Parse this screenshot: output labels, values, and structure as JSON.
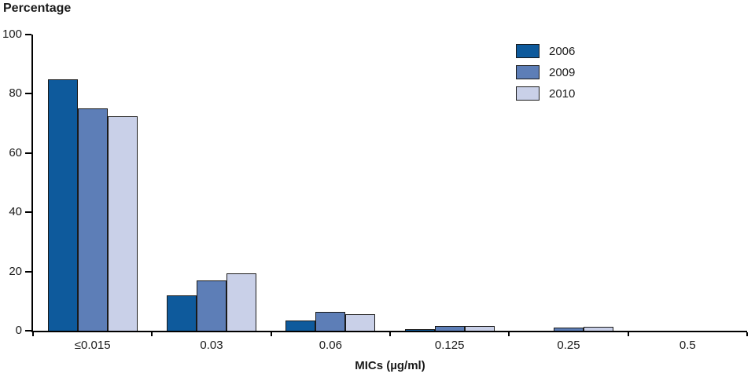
{
  "chart": {
    "title": "Percentage",
    "xlabel": "MICs (µg/ml)"
  },
  "chart_data": {
    "type": "bar",
    "title": "Percentage",
    "xlabel": "MICs (µg/ml)",
    "ylabel": "Percentage",
    "categories": [
      "≤0.015",
      "0.03",
      "0.06",
      "0.125",
      "0.25",
      "0.5"
    ],
    "series": [
      {
        "name": "2006",
        "color": "#0e5a9c",
        "values": [
          85,
          12,
          3.5,
          0.5,
          0,
          0
        ]
      },
      {
        "name": "2009",
        "color": "#5d7eb7",
        "values": [
          75,
          17,
          6.5,
          1.5,
          1,
          0
        ]
      },
      {
        "name": "2010",
        "color": "#c9d0e8",
        "values": [
          72.5,
          19.5,
          5.5,
          1.5,
          1.2,
          0
        ]
      }
    ],
    "ylim": [
      0,
      100
    ],
    "yticks": [
      0,
      20,
      40,
      60,
      80,
      100
    ],
    "grid": false,
    "legend_position": "top-right",
    "bar_border_color": "#1a1a1a",
    "axis_color": "#000000"
  }
}
